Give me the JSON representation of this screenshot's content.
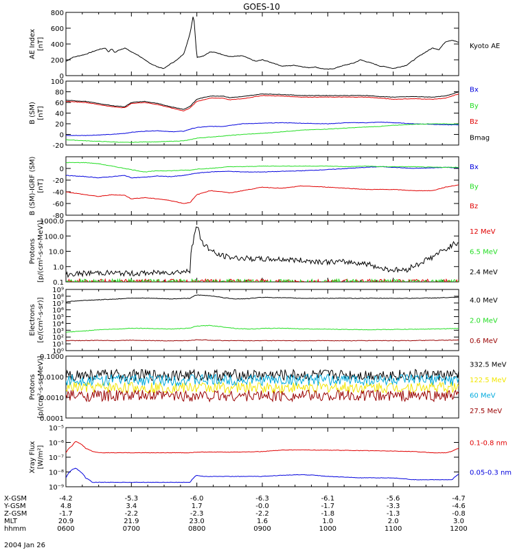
{
  "title": "GOES-10",
  "date": "2004 Jan 26",
  "colors": {
    "black": "#000000",
    "red": "#e00000",
    "green": "#22dd22",
    "blue": "#0000dd",
    "darkred": "#990000",
    "yellow": "#f2e600",
    "cyan": "#00aadd"
  },
  "chart_data": [
    {
      "type": "line",
      "title": "GOES-10",
      "ylabel": "AE Index [nT]",
      "scale": "linear",
      "ylim": [
        0,
        800
      ],
      "yticks": [
        "0",
        "200",
        "400",
        "600",
        "800"
      ],
      "x": [
        0.0,
        0.1,
        0.2,
        0.3,
        0.4,
        0.5,
        0.6,
        0.65,
        0.7,
        0.75,
        0.8,
        0.9,
        1.0,
        1.1,
        1.2,
        1.3,
        1.4,
        1.5,
        1.6,
        1.7,
        1.8,
        1.85,
        1.9,
        1.95,
        2.0,
        2.1,
        2.2,
        2.3,
        2.5,
        2.7,
        2.9,
        3.0,
        3.2,
        3.3,
        3.5,
        3.7,
        3.8,
        3.9,
        4.0,
        4.1,
        4.2,
        4.4,
        4.5,
        4.7,
        4.8,
        4.9,
        5.0,
        5.2,
        5.4,
        5.5,
        5.6,
        5.7,
        5.8,
        5.9,
        6.0
      ],
      "series": [
        {
          "name": "Kyoto AE",
          "color": "#000000",
          "values": [
            180,
            230,
            250,
            270,
            300,
            330,
            350,
            300,
            340,
            290,
            320,
            350,
            300,
            260,
            200,
            150,
            110,
            90,
            150,
            200,
            280,
            400,
            550,
            780,
            230,
            250,
            300,
            290,
            240,
            250,
            180,
            200,
            150,
            120,
            130,
            100,
            110,
            90,
            80,
            90,
            120,
            160,
            200,
            150,
            120,
            110,
            90,
            130,
            250,
            300,
            350,
            330,
            430,
            450,
            420
          ]
        }
      ]
    },
    {
      "type": "line",
      "ylabel": "B (SM) [nT]",
      "scale": "linear",
      "ylim": [
        -20,
        100
      ],
      "yticks": [
        "-20",
        "0",
        "20",
        "40",
        "60",
        "80",
        "100"
      ],
      "x": [
        0.0,
        0.3,
        0.5,
        0.7,
        0.9,
        1.0,
        1.2,
        1.4,
        1.6,
        1.8,
        1.9,
        2.0,
        2.2,
        2.4,
        2.5,
        2.7,
        3.0,
        3.3,
        3.6,
        4.0,
        4.3,
        4.6,
        4.8,
        5.0,
        5.3,
        5.6,
        5.8,
        6.0
      ],
      "series": [
        {
          "name": "Bx",
          "color": "#0000dd",
          "values": [
            -2,
            -2,
            -1,
            0,
            2,
            4,
            6,
            7,
            5,
            6,
            10,
            13,
            15,
            15,
            17,
            20,
            21,
            22,
            21,
            20,
            22,
            22,
            23,
            22,
            20,
            19,
            18,
            18
          ]
        },
        {
          "name": "By",
          "color": "#22dd22",
          "values": [
            -10,
            -12,
            -13,
            -14,
            -15,
            -15,
            -14,
            -14,
            -13,
            -12,
            -10,
            -7,
            -5,
            -3,
            -2,
            0,
            2,
            5,
            8,
            10,
            12,
            14,
            15,
            17,
            19,
            20,
            20,
            19
          ]
        },
        {
          "name": "Bz",
          "color": "#e00000",
          "values": [
            62,
            60,
            56,
            52,
            50,
            58,
            60,
            56,
            50,
            44,
            50,
            62,
            68,
            68,
            65,
            67,
            73,
            72,
            70,
            70,
            70,
            70,
            68,
            66,
            67,
            66,
            68,
            76
          ]
        },
        {
          "name": "Bmag",
          "color": "#000000",
          "values": [
            64,
            62,
            58,
            54,
            52,
            60,
            62,
            58,
            52,
            47,
            53,
            66,
            72,
            72,
            69,
            71,
            76,
            75,
            73,
            73,
            73,
            73,
            71,
            70,
            71,
            70,
            72,
            80
          ]
        }
      ]
    },
    {
      "type": "line",
      "ylabel": "B (SM)-IGRF (SM) [nT]",
      "scale": "linear",
      "ylim": [
        -80,
        20
      ],
      "yticks": [
        "-80",
        "-60",
        "-40",
        "-20",
        "0"
      ],
      "x": [
        0.0,
        0.3,
        0.5,
        0.7,
        0.9,
        1.0,
        1.2,
        1.4,
        1.6,
        1.8,
        1.9,
        2.0,
        2.2,
        2.4,
        2.5,
        2.7,
        3.0,
        3.3,
        3.6,
        4.0,
        4.3,
        4.6,
        4.8,
        5.0,
        5.3,
        5.6,
        5.8,
        6.0
      ],
      "series": [
        {
          "name": "Bx",
          "color": "#0000dd",
          "values": [
            -12,
            -14,
            -16,
            -14,
            -12,
            -16,
            -15,
            -13,
            -14,
            -12,
            -10,
            -8,
            -6,
            -5,
            -5,
            -6,
            -6,
            -5,
            -4,
            -2,
            0,
            2,
            3,
            2,
            0,
            1,
            2,
            1
          ]
        },
        {
          "name": "By",
          "color": "#22dd22",
          "values": [
            10,
            10,
            8,
            4,
            0,
            -2,
            -6,
            -4,
            -4,
            -3,
            -3,
            -1,
            0,
            2,
            3,
            3,
            4,
            4,
            4,
            4,
            3,
            4,
            3,
            3,
            3,
            2,
            2,
            2
          ]
        },
        {
          "name": "Bz",
          "color": "#e00000",
          "values": [
            -40,
            -45,
            -48,
            -45,
            -46,
            -52,
            -50,
            -52,
            -55,
            -60,
            -58,
            -45,
            -38,
            -40,
            -42,
            -38,
            -32,
            -34,
            -30,
            -32,
            -34,
            -36,
            -36,
            -36,
            -38,
            -38,
            -32,
            -28
          ]
        }
      ]
    },
    {
      "type": "line",
      "ylabel": "Protons [p/(cm²-s-sr-MeV)]",
      "scale": "log",
      "ylim": [
        0.1,
        1000
      ],
      "yticks": [
        "0.1",
        "1.0",
        "10.0",
        "100.0",
        "1000.0"
      ],
      "x": [
        0.0,
        0.5,
        1.0,
        1.5,
        1.9,
        1.95,
        2.0,
        2.05,
        2.1,
        2.2,
        2.3,
        2.5,
        2.7,
        3.0,
        3.3,
        3.6,
        4.0,
        4.3,
        4.6,
        4.8,
        5.0,
        5.2,
        5.4,
        5.6,
        5.8,
        6.0
      ],
      "series": [
        {
          "name": "12 MeV",
          "color": "#e00000",
          "values": [
            0.1,
            0.1,
            0.1,
            0.1,
            0.1,
            0.1,
            0.1,
            0.1,
            0.1,
            0.1,
            0.1,
            0.1,
            0.1,
            0.1,
            0.1,
            0.1,
            0.1,
            0.1,
            0.1,
            0.1,
            0.1,
            0.1,
            0.1,
            0.1,
            0.1,
            0.1
          ]
        },
        {
          "name": "6.5 MeV",
          "color": "#22dd22",
          "values": [
            0.1,
            0.1,
            0.1,
            0.1,
            0.1,
            0.1,
            0.1,
            0.1,
            0.1,
            0.1,
            0.1,
            0.1,
            0.1,
            0.1,
            0.1,
            0.1,
            0.1,
            0.1,
            0.1,
            0.1,
            0.1,
            0.1,
            0.1,
            0.1,
            0.1,
            0.1
          ]
        },
        {
          "name": "2.4 MeV",
          "color": "#000000",
          "values": [
            0.3,
            0.4,
            0.35,
            0.4,
            0.5,
            50,
            400,
            80,
            30,
            12,
            6,
            4,
            3.5,
            3,
            3,
            2.5,
            2,
            2,
            1.5,
            0.8,
            0.6,
            0.6,
            1.5,
            4,
            12,
            40
          ]
        }
      ]
    },
    {
      "type": "line",
      "ylabel": "Electrons [e/(cm²-s-sr)]",
      "scale": "log",
      "ylim": [
        1,
        1000000000
      ],
      "yticks": [
        "10⁰",
        "10¹",
        "10²",
        "10³",
        "10⁴",
        "10⁵",
        "10⁶",
        "10⁷",
        "10⁸",
        "10⁹"
      ],
      "x": [
        0.0,
        0.3,
        0.5,
        0.8,
        1.0,
        1.3,
        1.6,
        1.9,
        2.0,
        2.2,
        2.4,
        2.6,
        2.8,
        3.0,
        3.3,
        3.6,
        4.0,
        4.3,
        4.6,
        5.0,
        5.3,
        5.6,
        6.0
      ],
      "series": [
        {
          "name": "4.0 MeV",
          "color": "#000000",
          "values": [
            15000000,
            25000000,
            30000000,
            40000000,
            55000000,
            50000000,
            40000000,
            50000000,
            150000000,
            120000000,
            60000000,
            40000000,
            45000000,
            70000000,
            60000000,
            50000000,
            50000000,
            50000000,
            50000000,
            50000000,
            50000000,
            55000000,
            70000000
          ]
        },
        {
          "name": "2.0 MeV",
          "color": "#22dd22",
          "values": [
            500,
            800,
            1200,
            1500,
            2000,
            1800,
            1500,
            2000,
            4000,
            5000,
            3000,
            1800,
            1500,
            1800,
            2000,
            1600,
            1400,
            1300,
            1200,
            1300,
            1400,
            1500,
            1800
          ]
        },
        {
          "name": "0.6 MeV",
          "color": "#990000",
          "values": [
            30,
            30,
            32,
            30,
            35,
            30,
            28,
            30,
            40,
            35,
            30,
            30,
            28,
            30,
            30,
            28,
            30,
            28,
            30,
            30,
            30,
            32,
            35
          ]
        }
      ]
    },
    {
      "type": "line",
      "ylabel": "Protons [p/(cm²-s-sr-MeV)]",
      "scale": "log",
      "ylim": [
        0.0001,
        0.1
      ],
      "yticks": [
        "0.0001",
        "0.0010",
        "0.0100",
        "0.1000"
      ],
      "x": [
        0.0,
        1.0,
        2.0,
        3.0,
        4.0,
        5.0,
        6.0
      ],
      "series": [
        {
          "name": "332.5 MeV",
          "color": "#000000",
          "values": [
            0.012,
            0.012,
            0.012,
            0.012,
            0.012,
            0.012,
            0.012
          ]
        },
        {
          "name": "122.5 MeV",
          "color": "#f2e600",
          "values": [
            0.003,
            0.003,
            0.003,
            0.003,
            0.003,
            0.003,
            0.003
          ]
        },
        {
          "name": "60 MeV",
          "color": "#00aadd",
          "values": [
            0.007,
            0.007,
            0.007,
            0.007,
            0.007,
            0.007,
            0.007
          ]
        },
        {
          "name": "27.5 MeV",
          "color": "#990000",
          "values": [
            0.0012,
            0.0012,
            0.0012,
            0.0012,
            0.0012,
            0.0012,
            0.0012
          ]
        }
      ]
    },
    {
      "type": "line",
      "ylabel": "Xray Flux [W/m²]",
      "scale": "log",
      "ylim": [
        1e-09,
        1e-05
      ],
      "yticks": [
        "10⁻⁹",
        "10⁻⁸",
        "10⁻⁷",
        "10⁻⁶",
        "10⁻⁵"
      ],
      "x": [
        0.0,
        0.1,
        0.15,
        0.2,
        0.3,
        0.4,
        0.5,
        0.6,
        0.8,
        1.0,
        1.5,
        1.9,
        2.0,
        2.1,
        2.5,
        3.0,
        3.3,
        3.6,
        3.8,
        4.0,
        4.5,
        5.0,
        5.3,
        5.6,
        5.8,
        5.9,
        6.0
      ],
      "series": [
        {
          "name": "0.1-0.8 nm",
          "color": "#e00000",
          "values": [
            2e-07,
            6e-07,
            1.2e-06,
            9e-07,
            4e-07,
            2.5e-07,
            2e-07,
            2e-07,
            2e-07,
            2e-07,
            2e-07,
            2e-07,
            2.2e-07,
            2.2e-07,
            2.2e-07,
            2.4e-07,
            3e-07,
            3.2e-07,
            3e-07,
            3e-07,
            2.8e-07,
            2.6e-07,
            2.4e-07,
            2e-07,
            2e-07,
            2.5e-07,
            4e-07
          ]
        },
        {
          "name": "0.05-0.3 nm",
          "color": "#0000dd",
          "values": [
            4e-09,
            1.5e-08,
            1.8e-08,
            1.2e-08,
            4e-09,
            2e-09,
            2e-09,
            2e-09,
            2e-09,
            2e-09,
            2e-09,
            2e-09,
            6e-09,
            5e-09,
            5e-09,
            5e-09,
            6e-09,
            6.5e-09,
            6e-09,
            5e-09,
            4e-09,
            4e-09,
            3e-09,
            3e-09,
            3e-09,
            3e-09,
            7e-09
          ]
        }
      ]
    }
  ],
  "xaxis": {
    "row_labels": [
      "X-GSM",
      "Y-GSM",
      "Z-GSM",
      "MLT",
      "hhmm"
    ],
    "columns": [
      [
        "-4.2",
        "4.8",
        "-1.7",
        "20.9",
        "0600"
      ],
      [
        "-5.3",
        "3.4",
        "-2.2",
        "21.9",
        "0700"
      ],
      [
        "-6.0",
        "1.7",
        "-2.3",
        "23.0",
        "0800"
      ],
      [
        "-6.3",
        "-0.0",
        "-2.2",
        "1.6",
        "0900"
      ],
      [
        "-6.1",
        "-1.7",
        "-1.8",
        "1.0",
        "1000"
      ],
      [
        "-5.6",
        "-3.3",
        "-1.3",
        "2.0",
        "1100"
      ],
      [
        "-4.7",
        "-4.6",
        "-0.8",
        "3.0",
        "1200"
      ]
    ]
  }
}
